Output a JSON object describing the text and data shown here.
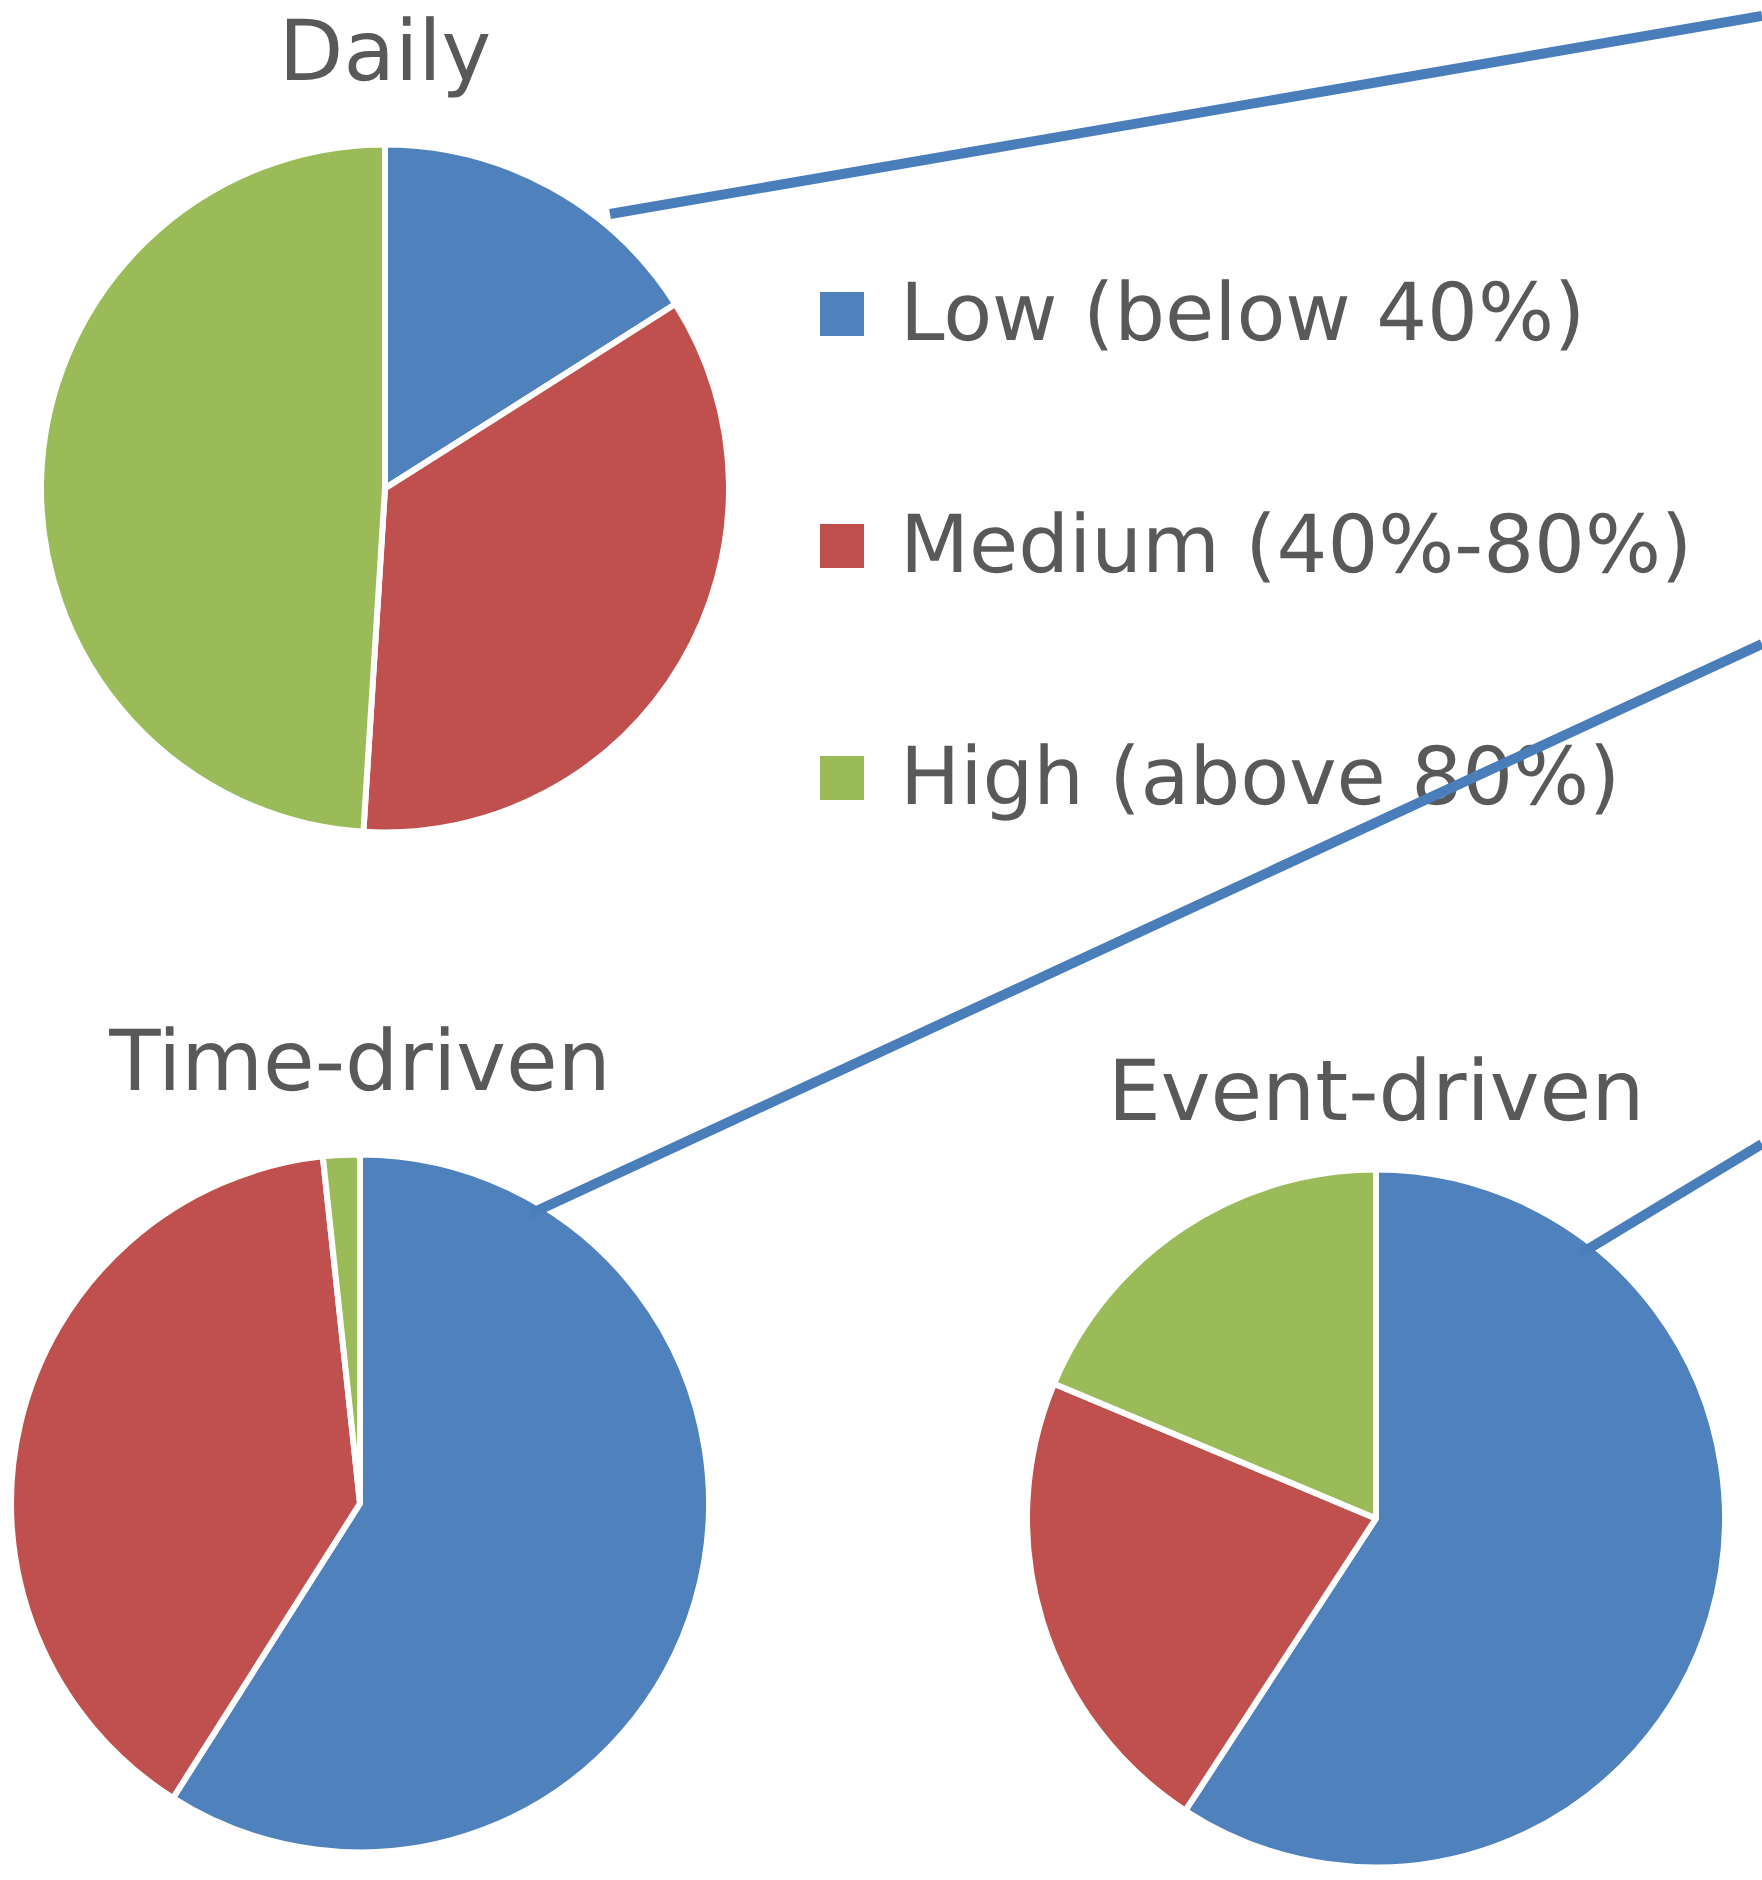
{
  "chart_data": [
    {
      "type": "pie",
      "title": "Daily",
      "categories": [
        "Low (below 40%)",
        "Medium (40%-80%)",
        "High (above 80%)"
      ],
      "values": [
        16,
        35,
        49
      ],
      "colors": [
        "#4f81bd",
        "#c0504d",
        "#9bbb59"
      ],
      "legend": "right"
    },
    {
      "type": "pie",
      "title": "Time-driven",
      "categories": [
        null,
        null,
        null
      ],
      "values": [
        59,
        39.3,
        1.7
      ],
      "colors": [
        "#4f81bd",
        "#c0504d",
        "#9bbb59"
      ]
    },
    {
      "type": "pie",
      "title": "Event-driven",
      "categories": [
        null,
        null,
        null
      ],
      "values": [
        59.2,
        22.1,
        18.7
      ],
      "colors": [
        "#4f81bd",
        "#c0504d",
        "#9bbb59"
      ]
    }
  ]
}
